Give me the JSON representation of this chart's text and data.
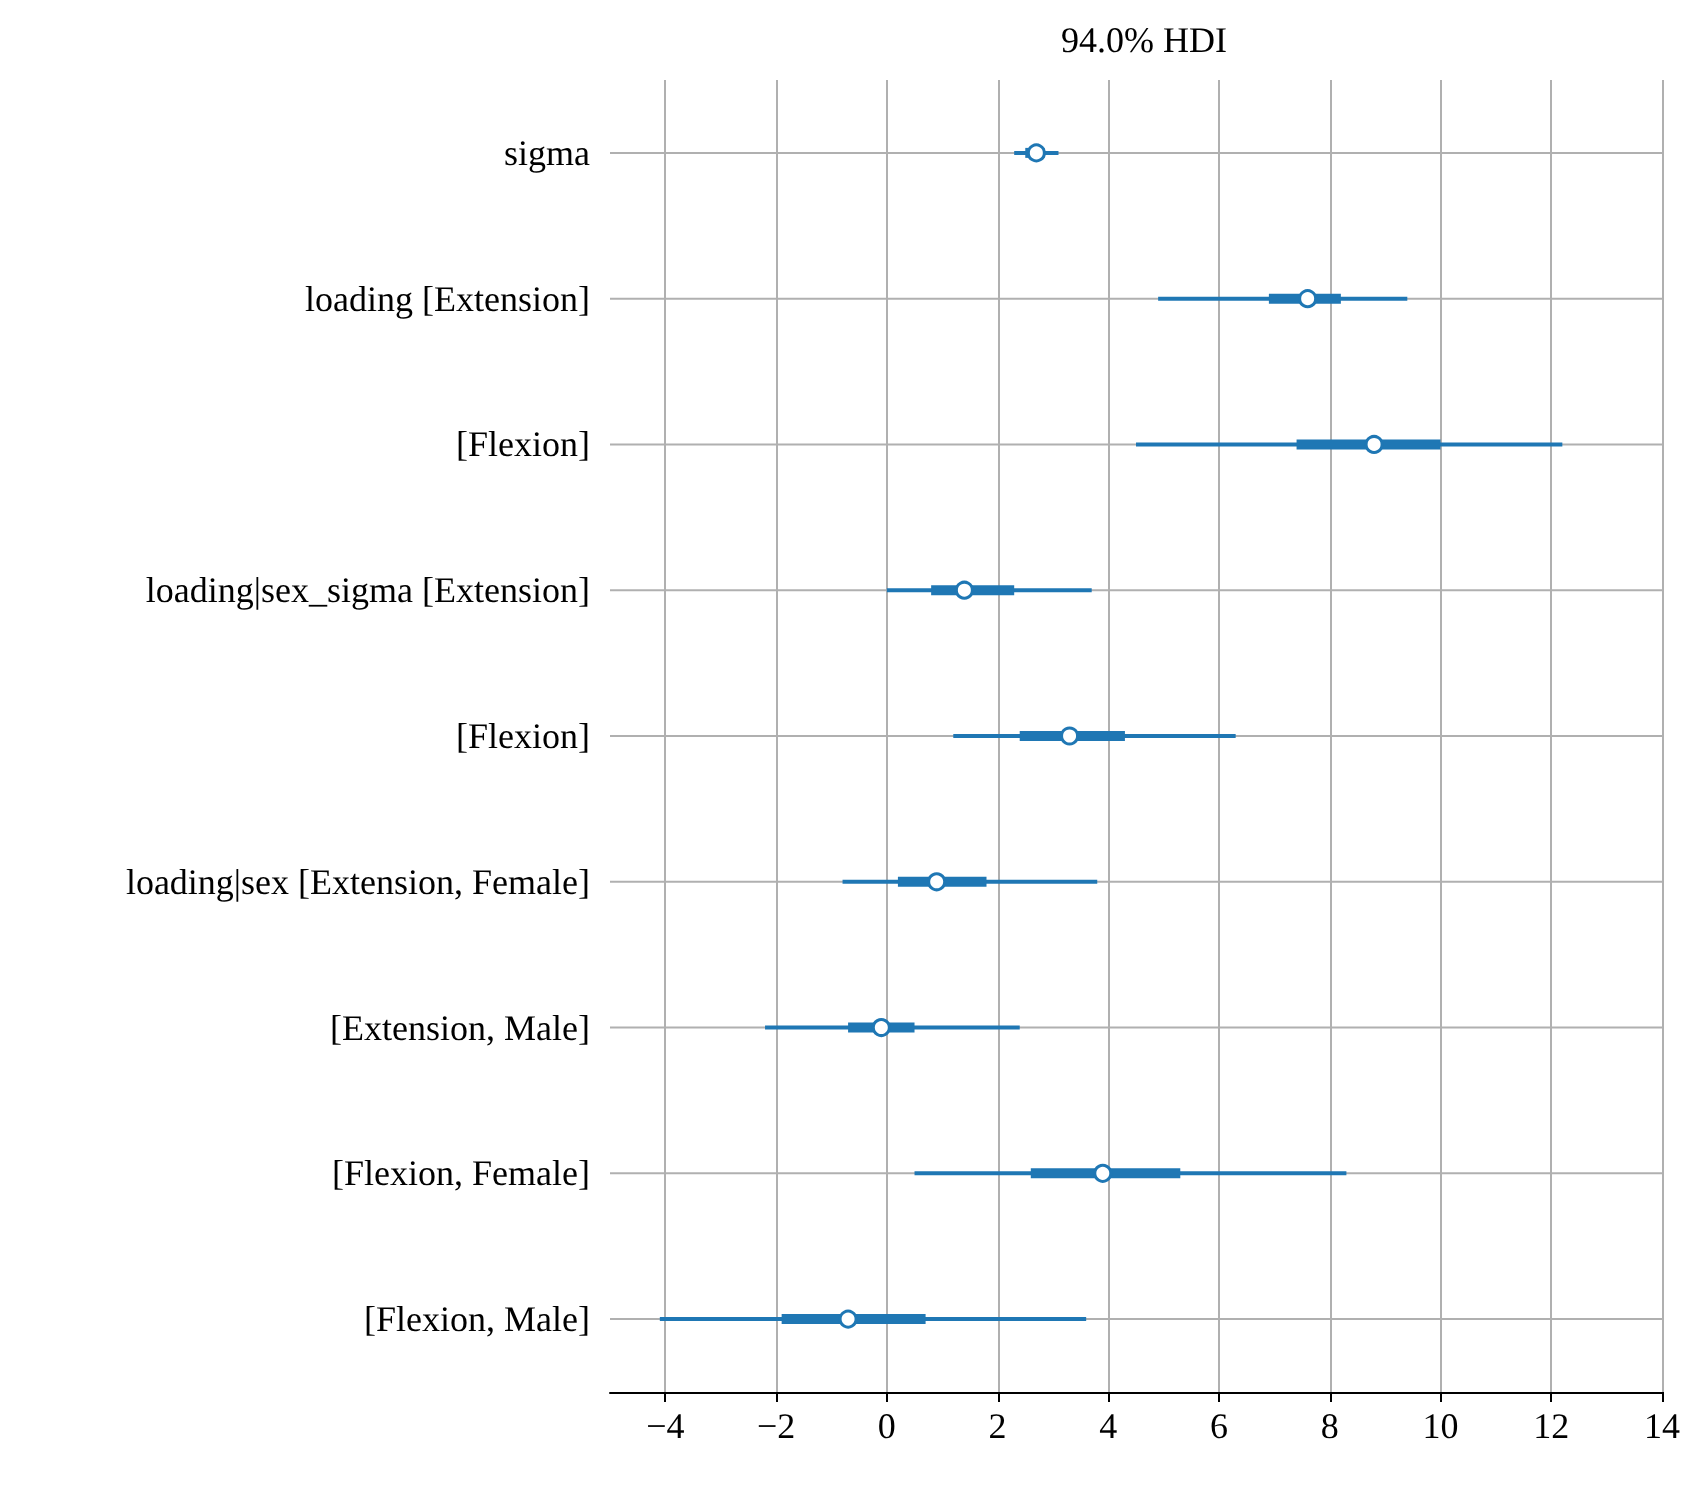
{
  "chart_data": {
    "type": "box",
    "title": "94.0% HDI",
    "orientation": "horizontal",
    "grid": true,
    "color": "#1f77b4",
    "categories": [
      "sigma",
      "loading [Extension]",
      "[Flexion]",
      "loading|sex_sigma [Extension]",
      "[Flexion]",
      "loading|sex [Extension, Female]",
      "[Extension, Male]",
      "[Flexion, Female]",
      "[Flexion, Male]"
    ],
    "boxes": [
      {
        "low": 2.3,
        "q1": 2.5,
        "median": 2.7,
        "q3": 2.85,
        "high": 3.1
      },
      {
        "low": 4.9,
        "q1": 6.9,
        "median": 7.6,
        "q3": 8.2,
        "high": 9.4
      },
      {
        "low": 4.5,
        "q1": 7.4,
        "median": 8.8,
        "q3": 10.0,
        "high": 12.2
      },
      {
        "low": 0.0,
        "q1": 0.8,
        "median": 1.4,
        "q3": 2.3,
        "high": 3.7
      },
      {
        "low": 1.2,
        "q1": 2.4,
        "median": 3.3,
        "q3": 4.3,
        "high": 6.3
      },
      {
        "low": -0.8,
        "q1": 0.2,
        "median": 0.9,
        "q3": 1.8,
        "high": 3.8
      },
      {
        "low": -2.2,
        "q1": -0.7,
        "median": -0.1,
        "q3": 0.5,
        "high": 2.4
      },
      {
        "low": 0.5,
        "q1": 2.6,
        "median": 3.9,
        "q3": 5.3,
        "high": 8.3
      },
      {
        "low": -4.1,
        "q1": -1.9,
        "median": -0.7,
        "q3": 0.7,
        "high": 3.6
      }
    ],
    "xlim": [
      -5,
      14
    ],
    "xticks": [
      {
        "value": -4,
        "label": "−4"
      },
      {
        "value": -2,
        "label": "−2"
      },
      0,
      2,
      4,
      6,
      8,
      10,
      12,
      14
    ]
  }
}
